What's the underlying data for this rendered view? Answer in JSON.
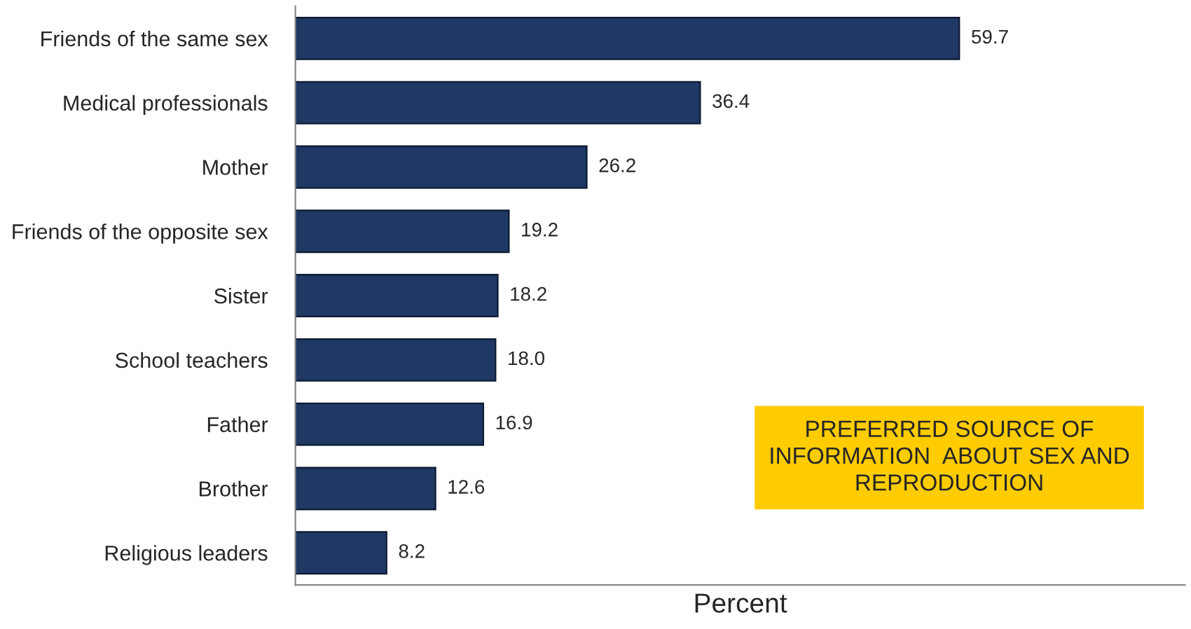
{
  "chart_data": {
    "type": "bar",
    "orientation": "horizontal",
    "title": "PREFERRED SOURCE OF\nINFORMATION  ABOUT SEX AND\nREPRODUCTION",
    "xlabel": "Percent",
    "categories": [
      "Friends of the same sex",
      "Medical professionals",
      "Mother",
      "Friends of the opposite sex",
      "Sister",
      "School teachers",
      "Father",
      "Brother",
      "Religious leaders"
    ],
    "values": [
      59.7,
      36.4,
      26.2,
      19.2,
      18.2,
      18.0,
      16.9,
      12.6,
      8.2
    ],
    "value_labels": [
      "59.7",
      "36.4",
      "26.2",
      "19.2",
      "18.2",
      "18.0",
      "16.9",
      "12.6",
      "8.2"
    ],
    "color": "#1f3864",
    "xlim": [
      0,
      80
    ],
    "tick_labels": "y",
    "grid": false,
    "legend": false
  }
}
